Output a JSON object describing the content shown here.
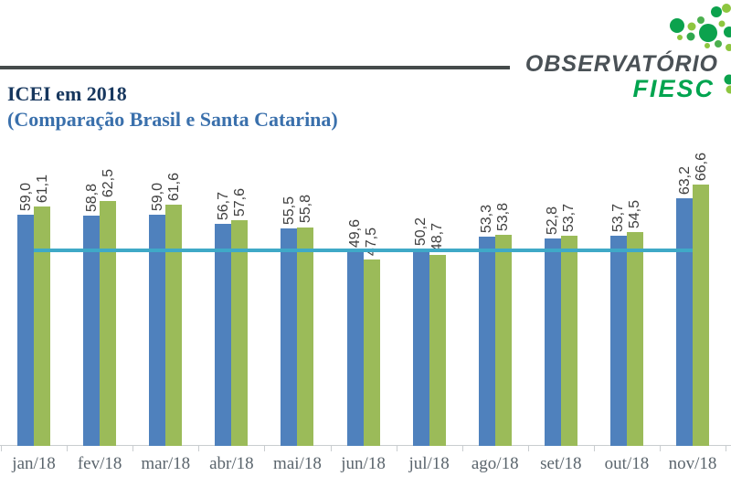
{
  "header": {
    "title": "ICEI em 2018",
    "subtitle": "(Comparação Brasil e Santa Catarina)"
  },
  "logo": {
    "wordmark": "OBSERVATÓRIO",
    "brand": "FIESC",
    "icon": "green-dots-cluster-icon",
    "colors": {
      "wordmark": "#4A5156",
      "brand": "#00A44F",
      "dot_dark": "#0CA24D",
      "dot_light": "#8DC63F",
      "dot_mid": "#4CB04F"
    }
  },
  "chart_data": {
    "type": "bar",
    "categories": [
      "jan/18",
      "fev/18",
      "mar/18",
      "abr/18",
      "mai/18",
      "jun/18",
      "jul/18",
      "ago/18",
      "set/18",
      "out/18",
      "nov/18"
    ],
    "series": [
      {
        "name": "Brasil",
        "color": "#4F81BD",
        "values": [
          59.0,
          58.8,
          59.0,
          56.7,
          55.5,
          49.6,
          50.2,
          53.3,
          52.8,
          53.7,
          63.2
        ],
        "labels": [
          "59,0",
          "58,8",
          "59,0",
          "56,7",
          "55,5",
          "49,6",
          "50,2",
          "53,3",
          "52,8",
          "53,7",
          "63,2"
        ]
      },
      {
        "name": "Santa Catarina",
        "color": "#9BBB59",
        "values": [
          61.1,
          62.5,
          61.6,
          57.6,
          55.8,
          47.5,
          48.7,
          53.8,
          53.7,
          54.5,
          66.6
        ],
        "labels": [
          "61,1",
          "62,5",
          "61,6",
          "57,6",
          "55,8",
          "47,5",
          "48,7",
          "53,8",
          "53,7",
          "54,5",
          "66,6"
        ]
      }
    ],
    "reference_line": {
      "value": 50,
      "color": "#3FA9C7"
    },
    "title": "ICEI em 2018 (Comparação Brasil e Santa Catarina)",
    "xlabel": "",
    "ylabel": "",
    "ylim": [
      0,
      70
    ],
    "y_axis_visible": false,
    "grid": false,
    "legend": "none",
    "data_label_rotation": -90,
    "data_label_decimal_separator": ","
  }
}
